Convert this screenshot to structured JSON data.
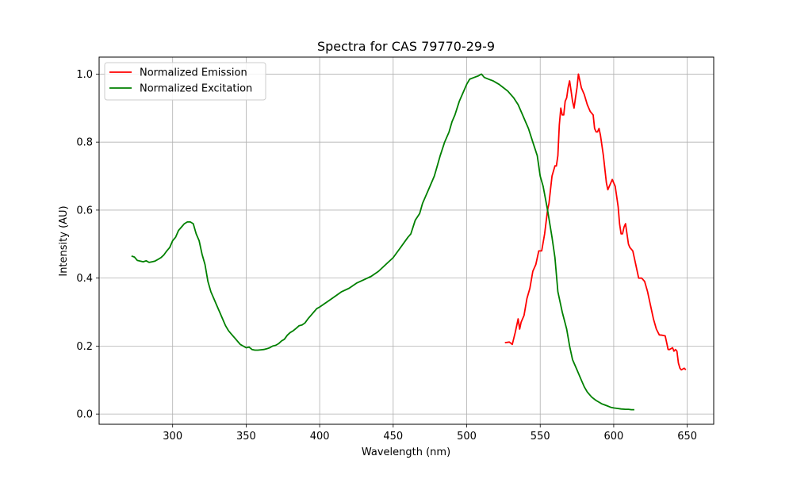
{
  "chart_data": {
    "type": "line",
    "title": "Spectra for CAS 79770-29-9",
    "xlabel": "Wavelength (nm)",
    "ylabel": "Intensity (AU)",
    "xlim": [
      250,
      668
    ],
    "ylim": [
      -0.03,
      1.05
    ],
    "xticks": [
      300,
      350,
      400,
      450,
      500,
      550,
      600,
      650
    ],
    "yticks": [
      0.0,
      0.2,
      0.4,
      0.6,
      0.8,
      1.0
    ],
    "xtick_labels": [
      "300",
      "350",
      "400",
      "450",
      "500",
      "550",
      "600",
      "650"
    ],
    "ytick_labels": [
      "0.0",
      "0.2",
      "0.4",
      "0.6",
      "0.8",
      "1.0"
    ],
    "grid": true,
    "legend_position": "upper-left",
    "series": [
      {
        "name": "Normalized Emission",
        "color": "#ff0000",
        "x": [
          526,
          529,
          531,
          533,
          535,
          536,
          537,
          539,
          541,
          543,
          545,
          547,
          549,
          551,
          553,
          555,
          556,
          557,
          558,
          560,
          561,
          562,
          563,
          564,
          565,
          566,
          567,
          568,
          569,
          570,
          571,
          572,
          573,
          574,
          575,
          576,
          577,
          578,
          580,
          582,
          584,
          586,
          587,
          588,
          589,
          590,
          591,
          593,
          594,
          595,
          596,
          597,
          599,
          600,
          601,
          603,
          604,
          605,
          606,
          607,
          608,
          610,
          611,
          613,
          615,
          617,
          619,
          621,
          623,
          625,
          627,
          629,
          631,
          633,
          635,
          636,
          637,
          638,
          640,
          641,
          642,
          643,
          644,
          645,
          646,
          648,
          649
        ],
        "y": [
          0.21,
          0.212,
          0.205,
          0.24,
          0.28,
          0.25,
          0.27,
          0.29,
          0.34,
          0.37,
          0.42,
          0.44,
          0.48,
          0.48,
          0.53,
          0.6,
          0.62,
          0.66,
          0.7,
          0.73,
          0.73,
          0.76,
          0.85,
          0.9,
          0.88,
          0.88,
          0.92,
          0.93,
          0.96,
          0.98,
          0.95,
          0.92,
          0.9,
          0.93,
          0.96,
          1.0,
          0.98,
          0.96,
          0.94,
          0.91,
          0.89,
          0.88,
          0.84,
          0.83,
          0.83,
          0.84,
          0.82,
          0.76,
          0.72,
          0.68,
          0.66,
          0.67,
          0.69,
          0.68,
          0.67,
          0.61,
          0.56,
          0.53,
          0.53,
          0.55,
          0.56,
          0.5,
          0.49,
          0.48,
          0.44,
          0.4,
          0.4,
          0.39,
          0.36,
          0.32,
          0.28,
          0.25,
          0.233,
          0.232,
          0.23,
          0.21,
          0.19,
          0.19,
          0.195,
          0.185,
          0.19,
          0.185,
          0.15,
          0.135,
          0.13,
          0.135,
          0.13
        ]
      },
      {
        "name": "Normalized Excitation",
        "color": "#008000",
        "x": [
          272,
          274,
          276,
          278,
          280,
          282,
          284,
          286,
          288,
          290,
          292,
          294,
          296,
          298,
          300,
          302,
          304,
          306,
          308,
          310,
          312,
          314,
          316,
          318,
          320,
          322,
          324,
          326,
          328,
          330,
          332,
          334,
          336,
          338,
          340,
          342,
          344,
          346,
          348,
          350,
          352,
          354,
          356,
          358,
          360,
          362,
          364,
          366,
          368,
          370,
          372,
          374,
          376,
          378,
          380,
          382,
          384,
          386,
          388,
          390,
          392,
          394,
          396,
          398,
          400,
          405,
          410,
          415,
          420,
          425,
          430,
          435,
          440,
          445,
          450,
          455,
          460,
          462,
          465,
          468,
          470,
          472,
          475,
          478,
          480,
          482,
          485,
          488,
          490,
          492,
          495,
          498,
          500,
          502,
          505,
          508,
          510,
          512,
          515,
          518,
          520,
          522,
          525,
          528,
          530,
          532,
          535,
          538,
          540,
          542,
          545,
          548,
          550,
          552,
          555,
          558,
          560,
          562,
          565,
          568,
          570,
          572,
          575,
          578,
          580,
          582,
          585,
          588,
          590,
          592,
          595,
          598,
          600,
          602,
          605,
          608,
          610,
          612,
          614
        ],
        "y": [
          0.465,
          0.462,
          0.452,
          0.45,
          0.448,
          0.451,
          0.446,
          0.448,
          0.45,
          0.455,
          0.46,
          0.468,
          0.48,
          0.49,
          0.51,
          0.52,
          0.54,
          0.55,
          0.56,
          0.565,
          0.565,
          0.56,
          0.53,
          0.51,
          0.47,
          0.44,
          0.39,
          0.36,
          0.34,
          0.32,
          0.3,
          0.28,
          0.26,
          0.245,
          0.235,
          0.225,
          0.215,
          0.205,
          0.2,
          0.195,
          0.197,
          0.19,
          0.188,
          0.188,
          0.189,
          0.19,
          0.192,
          0.195,
          0.2,
          0.202,
          0.207,
          0.215,
          0.22,
          0.232,
          0.24,
          0.245,
          0.252,
          0.26,
          0.262,
          0.268,
          0.28,
          0.29,
          0.3,
          0.31,
          0.315,
          0.33,
          0.345,
          0.36,
          0.37,
          0.385,
          0.395,
          0.405,
          0.42,
          0.44,
          0.46,
          0.49,
          0.52,
          0.53,
          0.57,
          0.59,
          0.62,
          0.64,
          0.67,
          0.7,
          0.73,
          0.76,
          0.8,
          0.83,
          0.86,
          0.88,
          0.92,
          0.95,
          0.97,
          0.985,
          0.99,
          0.995,
          1.0,
          0.99,
          0.985,
          0.98,
          0.975,
          0.97,
          0.96,
          0.95,
          0.94,
          0.93,
          0.91,
          0.88,
          0.86,
          0.84,
          0.8,
          0.76,
          0.7,
          0.67,
          0.6,
          0.52,
          0.46,
          0.36,
          0.3,
          0.25,
          0.2,
          0.16,
          0.13,
          0.1,
          0.08,
          0.065,
          0.05,
          0.04,
          0.035,
          0.03,
          0.025,
          0.02,
          0.018,
          0.017,
          0.015,
          0.014,
          0.014,
          0.013,
          0.013
        ]
      }
    ]
  }
}
